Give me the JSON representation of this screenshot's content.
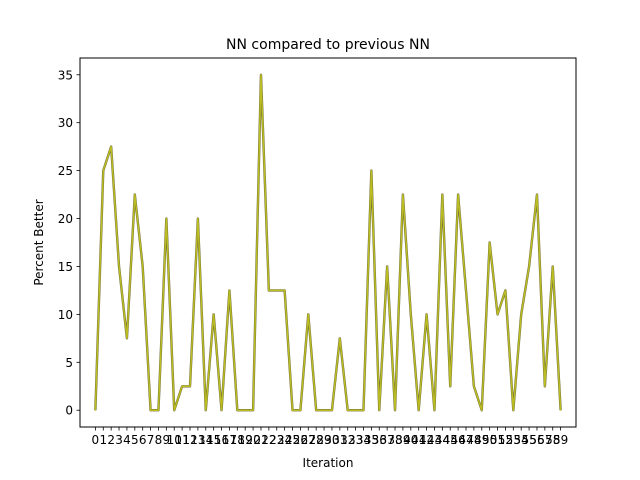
{
  "chart_data": {
    "type": "line",
    "title": "NN compared to previous NN",
    "xlabel": "Iteration",
    "ylabel": "Percent Better",
    "xlim": [
      -1.95,
      60.95
    ],
    "ylim": [
      -1.75,
      36.75
    ],
    "grid": false,
    "x_ticks": [
      0,
      1,
      2,
      3,
      4,
      5,
      6,
      7,
      8,
      9,
      10,
      11,
      12,
      13,
      14,
      15,
      16,
      17,
      18,
      19,
      20,
      21,
      22,
      23,
      24,
      25,
      26,
      27,
      28,
      29,
      30,
      31,
      32,
      33,
      34,
      35,
      36,
      37,
      38,
      39,
      40,
      41,
      42,
      43,
      44,
      45,
      46,
      47,
      48,
      49,
      50,
      51,
      52,
      53,
      54,
      55,
      56,
      57,
      58,
      59
    ],
    "x_tick_labels": [
      "0",
      "1",
      "2",
      "3",
      "4",
      "5",
      "6",
      "7",
      "8",
      "9",
      "10",
      "11",
      "12",
      "13",
      "14",
      "15",
      "16",
      "17",
      "18",
      "19",
      "20",
      "21",
      "22",
      "23",
      "24",
      "25",
      "26",
      "27",
      "28",
      "29",
      "30",
      "31",
      "32",
      "33",
      "34",
      "35",
      "36",
      "37",
      "38",
      "39",
      "40",
      "41",
      "42",
      "43",
      "44",
      "45",
      "46",
      "47",
      "48",
      "49",
      "50",
      "51",
      "52",
      "53",
      "54",
      "55",
      "56",
      "57",
      "58",
      "59"
    ],
    "y_ticks": [
      0,
      5,
      10,
      15,
      20,
      25,
      30,
      35
    ],
    "y_tick_labels": [
      "0",
      "5",
      "10",
      "15",
      "20",
      "25",
      "30",
      "35"
    ],
    "series": [
      {
        "color": "#bcbd22",
        "x": [
          0,
          1,
          2,
          3,
          4,
          5,
          6,
          7,
          8,
          9,
          10,
          11,
          12,
          13,
          14,
          15,
          16,
          17,
          18,
          19,
          20,
          21,
          22,
          23,
          24,
          25,
          26,
          27,
          28,
          29,
          30,
          31,
          32,
          33,
          34,
          35,
          36,
          37,
          38,
          39,
          40,
          41,
          42,
          43,
          44,
          45,
          46,
          47,
          48,
          49,
          50,
          51,
          52,
          53,
          54,
          55,
          56,
          57,
          58,
          59
        ],
        "values": [
          0,
          25,
          27.5,
          15,
          7.5,
          22.5,
          15,
          0,
          0,
          20,
          0,
          2.5,
          2.5,
          20,
          0,
          10,
          0,
          12.5,
          0,
          0,
          0,
          35,
          12.5,
          12.5,
          12.5,
          0,
          0,
          10,
          0,
          0,
          0,
          7.5,
          0,
          0,
          0,
          25,
          0,
          15,
          0,
          22.5,
          10,
          0,
          10,
          0,
          22.5,
          2.5,
          22.5,
          12.5,
          2.5,
          0,
          17.5,
          10,
          12.5,
          0,
          10,
          15,
          22.5,
          2.5,
          15,
          0
        ]
      }
    ]
  }
}
